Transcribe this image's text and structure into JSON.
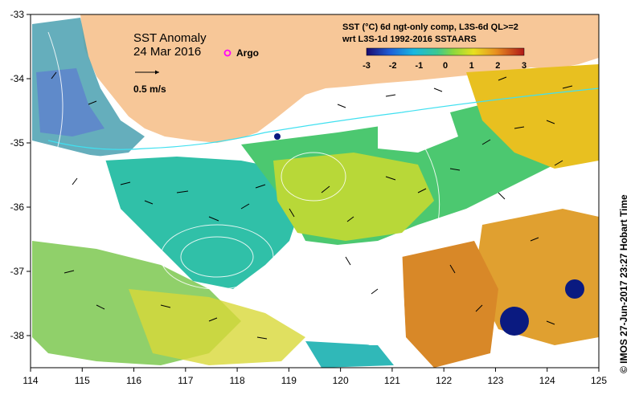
{
  "map": {
    "title": "SST Anomaly",
    "date": "24 Mar 2016",
    "argo_label": "Argo",
    "velocity_scale_label": "0.5 m/s",
    "legend_title_line1": "SST (°C) 6d ngt-only comp, L3S-6d QL>=2",
    "legend_title_line2": "wrt L3S-1d 1992-2016 SSTAARS",
    "colorbar_ticks": [
      "-3",
      "-2",
      "-1",
      "0",
      "1",
      "2",
      "3"
    ],
    "x_ticks": [
      "114",
      "115",
      "116",
      "117",
      "118",
      "119",
      "120",
      "121",
      "122",
      "123",
      "124",
      "125"
    ],
    "y_ticks": [
      "-33",
      "-34",
      "-35",
      "-36",
      "-37",
      "-38"
    ],
    "credit": "© IMOS 27-Jun-2017 23:27 Hobart Time"
  },
  "colors": {
    "land": "#f7c798",
    "no_data": "#ffffff",
    "argo_marker": "#ff00ff",
    "cold_anomaly": "#1f5fb0",
    "neutral_anomaly": "#5cc46a",
    "warm_anomaly": "#e0a030"
  }
}
